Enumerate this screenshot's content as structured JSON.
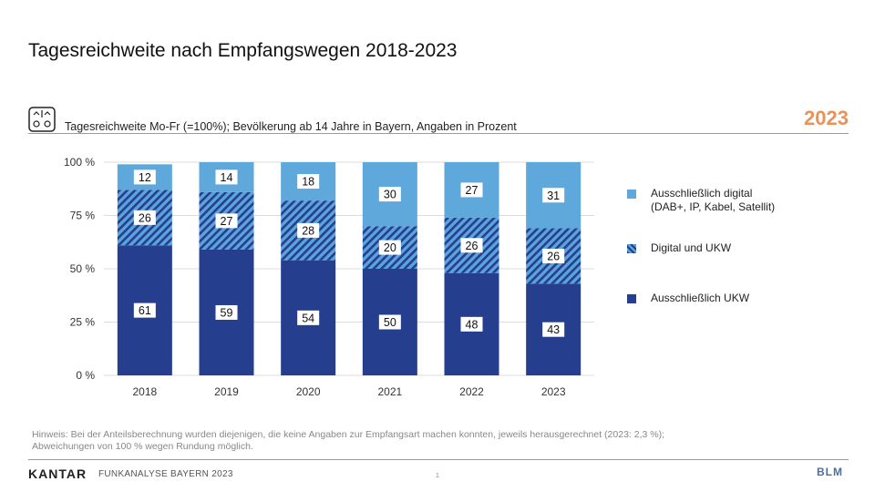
{
  "page": {
    "title": "Tagesreichweite nach Empfangswegen 2018-2023",
    "subtitle": "Tagesreichweite Mo-Fr (=100%); Bevölkerung ab 14 Jahre in Bayern, Angaben in Prozent",
    "year_badge": "2023",
    "footnote_line1": "Hinweis: Bei der Anteilsberechnung wurden diejenigen, die keine Angaben zur Empfangsart machen konnten, jeweils herausgerechnet (2023: 2,3 %);",
    "footnote_line2": "Abweichungen von 100 % wegen Rundung möglich.",
    "footer_brand": "KANTAR",
    "footer_text": "FUNKANALYSE BAYERN 2023",
    "page_number": "1",
    "footer_logo": "BLM",
    "colors": {
      "badge": "#e8935a",
      "header_line": "#9a9a9a"
    }
  },
  "chart_data": {
    "type": "bar",
    "stacked": true,
    "categories": [
      "2018",
      "2019",
      "2020",
      "2021",
      "2022",
      "2023"
    ],
    "series": [
      {
        "name": "Ausschließlich UKW",
        "values": [
          61,
          59,
          54,
          50,
          48,
          43
        ],
        "color": "#253f8e",
        "pattern": "solid"
      },
      {
        "name": "Digital und UKW",
        "values": [
          26,
          27,
          28,
          20,
          26,
          26
        ],
        "color": "#5aa0d8",
        "pattern": "hatched"
      },
      {
        "name": "Ausschließlich digital (DAB+, IP, Kabel, Satellit)",
        "values": [
          12,
          14,
          18,
          30,
          27,
          31
        ],
        "color": "#5ea8db",
        "pattern": "solid"
      }
    ],
    "legend_lines": [
      [
        "Ausschließlich digital",
        "(DAB+, IP, Kabel, Satellit)"
      ],
      [
        "Digital und UKW"
      ],
      [
        "Ausschließlich UKW"
      ]
    ],
    "ylim": [
      0,
      100
    ],
    "yticks": [
      0,
      25,
      50,
      75,
      100
    ],
    "ytick_labels": [
      "0 %",
      "25 %",
      "50 %",
      "75 %",
      "100 %"
    ],
    "grid": true,
    "legend_position": "right"
  }
}
